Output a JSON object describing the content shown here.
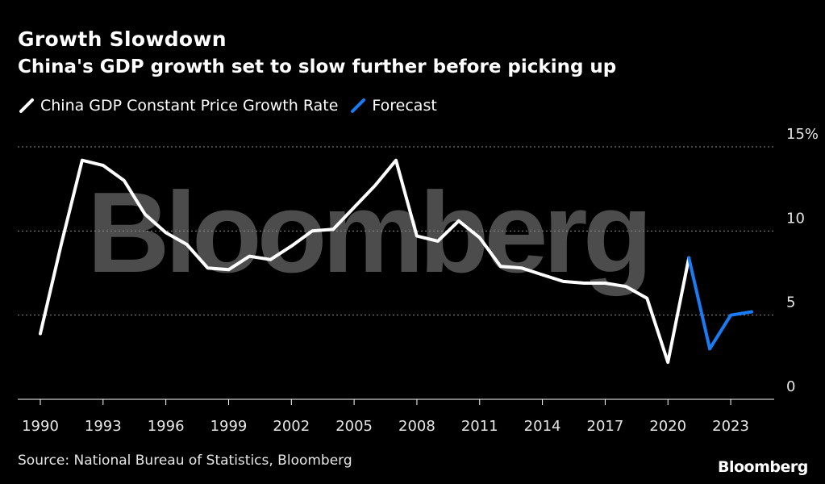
{
  "header": {
    "title": "Growth Slowdown",
    "subtitle": "China's GDP growth set to slow further before picking up"
  },
  "legend": {
    "items": [
      {
        "label": "China GDP Constant Price Growth Rate",
        "color": "#ffffff"
      },
      {
        "label": "Forecast",
        "color": "#1a7cf5"
      }
    ]
  },
  "watermark": {
    "text": "Bloomberg"
  },
  "footer": {
    "source": "Source: National Bureau of Statistics, Bloomberg",
    "brand": "Bloomberg"
  },
  "chart_data": {
    "type": "line",
    "title": "Growth Slowdown",
    "subtitle": "China's GDP growth set to slow further before picking up",
    "xlabel": "",
    "ylabel": "",
    "ylim": [
      0,
      15
    ],
    "xlim": [
      1990,
      2025
    ],
    "y_ticks": [
      0,
      5,
      10,
      15
    ],
    "y_tick_labels": [
      "0",
      "5",
      "10",
      "15%"
    ],
    "x_ticks": [
      1990,
      1993,
      1996,
      1999,
      2002,
      2005,
      2008,
      2011,
      2014,
      2017,
      2020,
      2023
    ],
    "grid": "horizontal dotted",
    "series": [
      {
        "name": "China GDP Constant Price Growth Rate",
        "color": "#ffffff",
        "x": [
          1990,
          1991,
          1992,
          1993,
          1994,
          1995,
          1996,
          1997,
          1998,
          1999,
          2000,
          2001,
          2002,
          2003,
          2004,
          2005,
          2006,
          2007,
          2008,
          2009,
          2010,
          2011,
          2012,
          2013,
          2014,
          2015,
          2016,
          2017,
          2018,
          2019,
          2020,
          2021
        ],
        "values": [
          3.9,
          9.2,
          14.2,
          13.9,
          13.0,
          11.0,
          9.9,
          9.2,
          7.8,
          7.7,
          8.5,
          8.3,
          9.1,
          10.0,
          10.1,
          11.4,
          12.7,
          14.2,
          9.7,
          9.4,
          10.6,
          9.6,
          7.9,
          7.8,
          7.4,
          7.0,
          6.9,
          6.9,
          6.7,
          6.0,
          2.2,
          8.4
        ]
      },
      {
        "name": "Forecast",
        "color": "#1a7cf5",
        "x": [
          2021,
          2022,
          2023,
          2024
        ],
        "values": [
          8.4,
          3.0,
          5.0,
          5.2
        ]
      }
    ]
  }
}
